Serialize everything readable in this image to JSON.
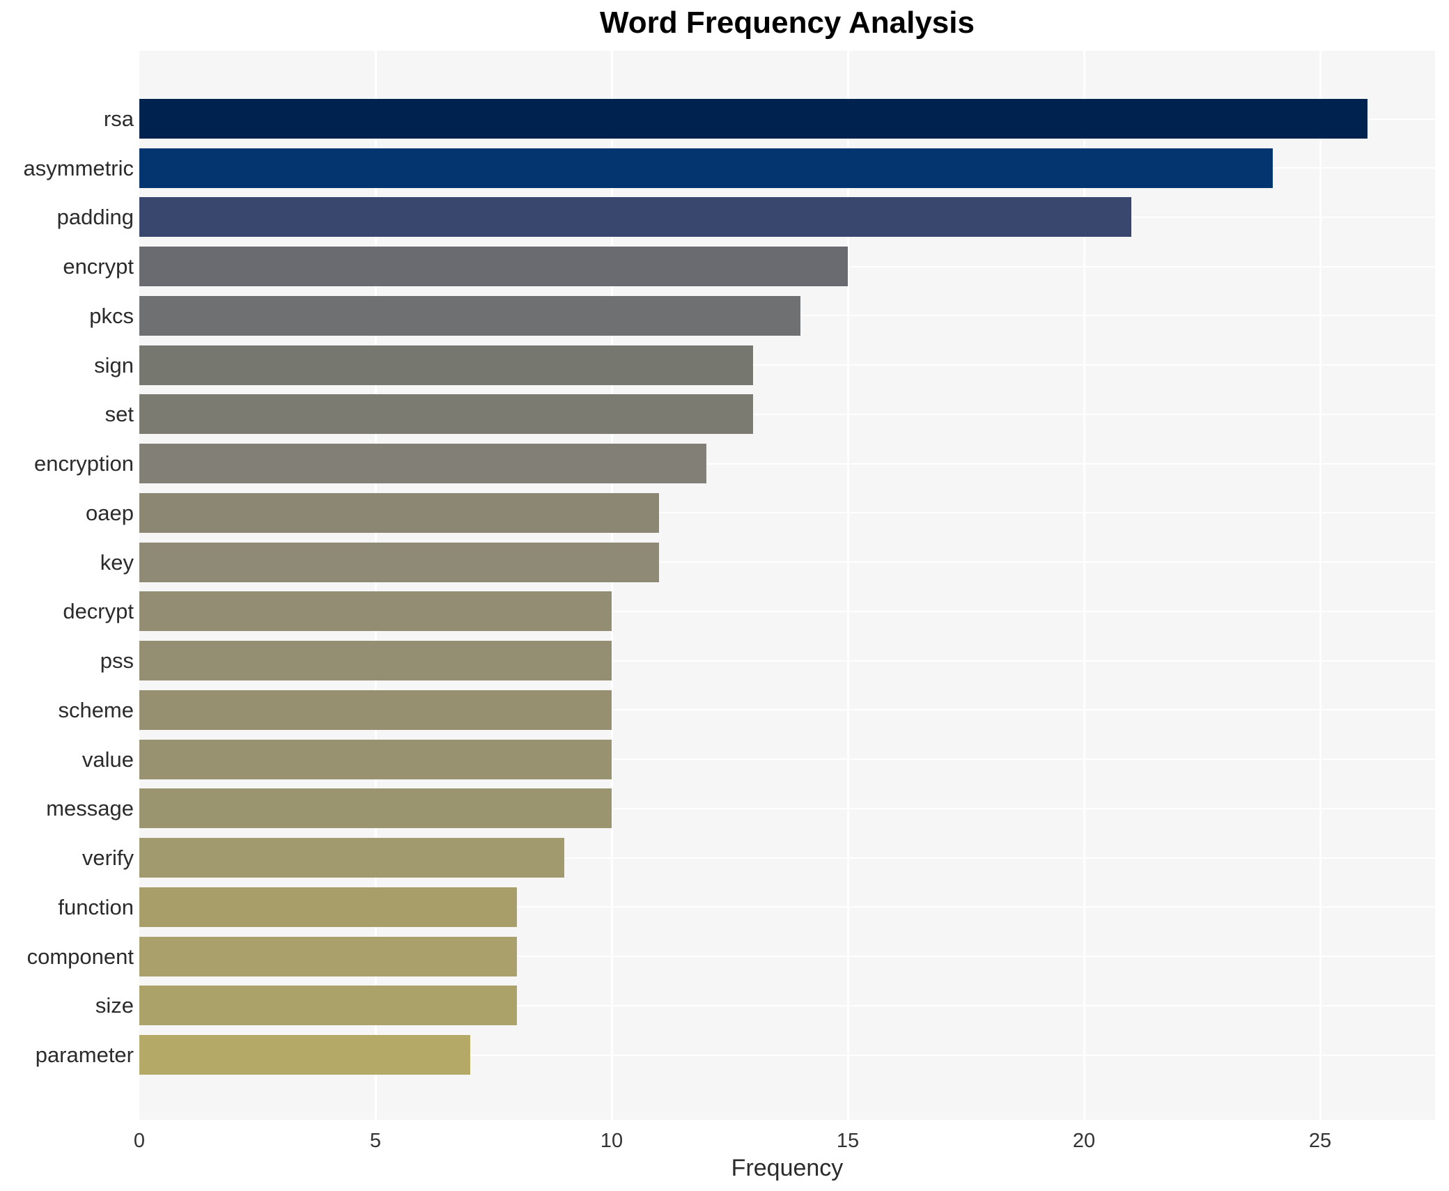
{
  "title": "Word Frequency Analysis",
  "chart_data": {
    "type": "bar",
    "orientation": "horizontal",
    "title": "Word Frequency Analysis",
    "xlabel": "Frequency",
    "ylabel": "",
    "categories": [
      "rsa",
      "asymmetric",
      "padding",
      "encrypt",
      "pkcs",
      "sign",
      "set",
      "encryption",
      "oaep",
      "key",
      "decrypt",
      "pss",
      "scheme",
      "value",
      "message",
      "verify",
      "function",
      "component",
      "size",
      "parameter"
    ],
    "values": [
      26,
      24,
      21,
      15,
      14,
      13,
      13,
      12,
      11,
      11,
      10,
      10,
      10,
      10,
      10,
      9,
      8,
      8,
      8,
      7
    ],
    "bar_colors": [
      "#00224e",
      "#04356e",
      "#39476e",
      "#6a6b70",
      "#6f7071",
      "#76776f",
      "#7b7b72",
      "#828076",
      "#8c8773",
      "#8f8a75",
      "#938d73",
      "#948e72",
      "#969070",
      "#989270",
      "#9a946f",
      "#a19a6e",
      "#a79e6a",
      "#a9a06b",
      "#aba26a",
      "#b4a966"
    ],
    "xticks": [
      0,
      5,
      10,
      15,
      20,
      25
    ],
    "xlim": [
      0,
      27.4
    ],
    "grid": true,
    "legend": "none",
    "plot_background": "#f6f6f7",
    "gridline_color": "#ffffff",
    "title_color": "#000000",
    "tick_color": "#333333"
  }
}
